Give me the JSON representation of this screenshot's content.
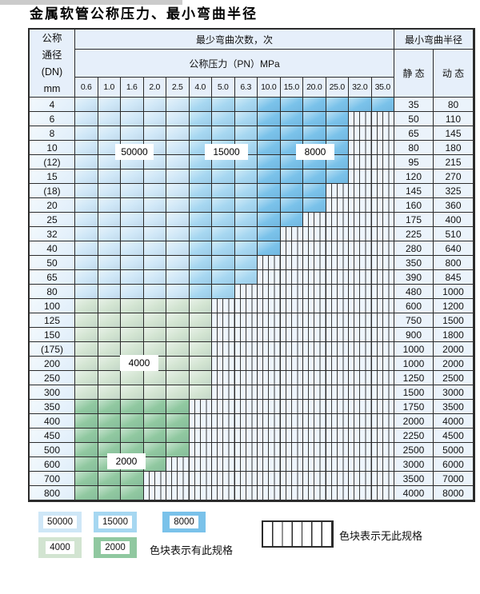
{
  "title": "金属软管公称压力、最小弯曲半径",
  "colors": {
    "cycles_50000": "#cfe7f7",
    "cycles_15000": "#a6d7f1",
    "cycles_8000": "#7ac2ea",
    "cycles_4000": "#d2e4d1",
    "cycles_2000": "#90c8a0",
    "stripe_bg": "#eef5fc",
    "border": "#2b2b2b"
  },
  "table": {
    "dn_header_lines": [
      "公称",
      "通径",
      "(DN)",
      "mm"
    ],
    "bend_cycles_header": "最少弯曲次数，次",
    "pressure_header": "公称压力（PN）MPa",
    "pressures": [
      "0.6",
      "1.0",
      "1.6",
      "2.0",
      "2.5",
      "4.0",
      "5.0",
      "6.3",
      "10.0",
      "15.0",
      "20.0",
      "25.0",
      "32.0",
      "35.0"
    ],
    "radius_header": "最小弯曲半径",
    "static_header": "静 态",
    "dynamic_header": "动 态",
    "cell_codes": {
      "P": "50000",
      "M": "15000",
      "D": "8000",
      "G": "4000",
      "g": "2000",
      "S": "no-spec"
    },
    "rows": [
      {
        "dn": "4",
        "cells": "PPPPPMMMDDDDDD",
        "static": "35",
        "dynamic": "80"
      },
      {
        "dn": "6",
        "cells": "PPPPPMMMDDDDSS",
        "static": "50",
        "dynamic": "110"
      },
      {
        "dn": "8",
        "cells": "PPPPPMMMDDDDSS",
        "static": "65",
        "dynamic": "145"
      },
      {
        "dn": "10",
        "cells": "PPPPPMMMDDDDSS",
        "static": "80",
        "dynamic": "180"
      },
      {
        "dn": "(12)",
        "cells": "PPPPPMMMDDDDSS",
        "static": "95",
        "dynamic": "215"
      },
      {
        "dn": "15",
        "cells": "PPPPPMMMDDDDSS",
        "static": "120",
        "dynamic": "270"
      },
      {
        "dn": "(18)",
        "cells": "PPPPPMMMDDDSSS",
        "static": "145",
        "dynamic": "325"
      },
      {
        "dn": "20",
        "cells": "PPPPPMMMDDDSSS",
        "static": "160",
        "dynamic": "360"
      },
      {
        "dn": "25",
        "cells": "PPPPPMMMDDSSSS",
        "static": "175",
        "dynamic": "400"
      },
      {
        "dn": "32",
        "cells": "PPPPPMMMDSSSSS",
        "static": "225",
        "dynamic": "510"
      },
      {
        "dn": "40",
        "cells": "PPPPPMMMDSSSSS",
        "static": "280",
        "dynamic": "640"
      },
      {
        "dn": "50",
        "cells": "PPPPPMMMSSSSSS",
        "static": "350",
        "dynamic": "800"
      },
      {
        "dn": "65",
        "cells": "PPPPPMMMSSSSSS",
        "static": "390",
        "dynamic": "845"
      },
      {
        "dn": "80",
        "cells": "PPPPPMMSSSSSSS",
        "static": "480",
        "dynamic": "1000"
      },
      {
        "dn": "100",
        "cells": "GGGGGGSSSSSSSS",
        "static": "600",
        "dynamic": "1200"
      },
      {
        "dn": "125",
        "cells": "GGGGGGSSSSSSSS",
        "static": "750",
        "dynamic": "1500"
      },
      {
        "dn": "150",
        "cells": "GGGGGGSSSSSSSS",
        "static": "900",
        "dynamic": "1800"
      },
      {
        "dn": "(175)",
        "cells": "GGGGGGSSSSSSSS",
        "static": "1000",
        "dynamic": "2000"
      },
      {
        "dn": "200",
        "cells": "GGGGGGSSSSSSSS",
        "static": "1000",
        "dynamic": "2000"
      },
      {
        "dn": "250",
        "cells": "GGGGGGSSSSSSSS",
        "static": "1250",
        "dynamic": "2500"
      },
      {
        "dn": "300",
        "cells": "GGGGGGSSSSSSSS",
        "static": "1500",
        "dynamic": "3000"
      },
      {
        "dn": "350",
        "cells": "gggggSSSSSSSSS",
        "static": "1750",
        "dynamic": "3500"
      },
      {
        "dn": "400",
        "cells": "gggggSSSSSSSSS",
        "static": "2000",
        "dynamic": "4000"
      },
      {
        "dn": "450",
        "cells": "gggggSSSSSSSSS",
        "static": "2250",
        "dynamic": "4500"
      },
      {
        "dn": "500",
        "cells": "gggggSSSSSSSSS",
        "static": "2500",
        "dynamic": "5000"
      },
      {
        "dn": "600",
        "cells": "ggggSSSSSSSSSS",
        "static": "3000",
        "dynamic": "6000"
      },
      {
        "dn": "700",
        "cells": "gggSSSSSSSSSSS",
        "static": "3500",
        "dynamic": "7000"
      },
      {
        "dn": "800",
        "cells": "gggSSSSSSSSSSS",
        "static": "4000",
        "dynamic": "8000"
      }
    ]
  },
  "overlay_labels": [
    {
      "text": "50000"
    },
    {
      "text": "15000"
    },
    {
      "text": "8000"
    },
    {
      "text": "4000"
    },
    {
      "text": "2000"
    }
  ],
  "legend": {
    "items": [
      {
        "label": "50000"
      },
      {
        "label": "15000"
      },
      {
        "label": "8000"
      },
      {
        "label": "4000"
      },
      {
        "label": "2000"
      }
    ],
    "has_spec_text": "色块表示有此规格",
    "no_spec_text": "色块表示无此规格"
  }
}
